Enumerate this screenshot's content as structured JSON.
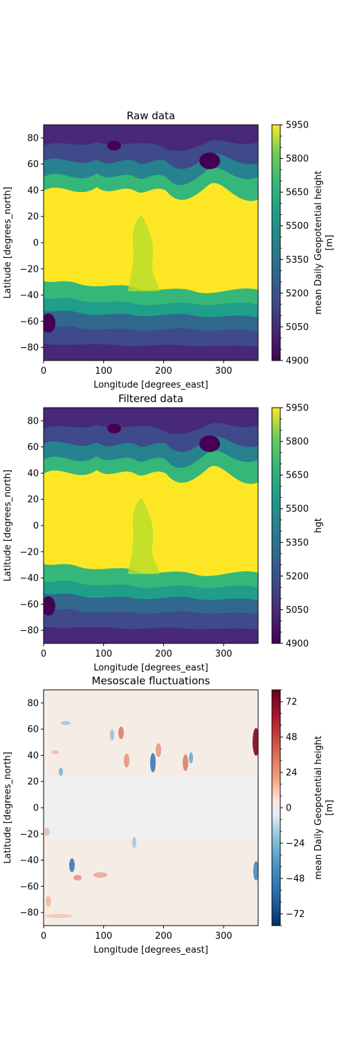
{
  "chart_data": [
    {
      "type": "heatmap",
      "title": "Raw data",
      "xlabel": "Longitude [degrees_east]",
      "ylabel": "Latitude [degrees_north]",
      "xlim": [
        0,
        357.5
      ],
      "ylim": [
        -90,
        90
      ],
      "x_ticks": [
        "0",
        "100",
        "200",
        "300"
      ],
      "y_ticks": [
        "80",
        "60",
        "40",
        "20",
        "0",
        "−20",
        "−40",
        "−60",
        "−80"
      ],
      "colormap": "viridis",
      "colorbar": {
        "label": "mean Daily Geopotential height",
        "label_unit": "[m]",
        "range": [
          4900,
          5950
        ],
        "ticks": [
          "5950",
          "5800",
          "5650",
          "5500",
          "5350",
          "5200",
          "5050",
          "4900"
        ]
      }
    },
    {
      "type": "heatmap",
      "title": "Filtered data",
      "xlabel": "Longitude [degrees_east]",
      "ylabel": "Latitude [degrees_north]",
      "xlim": [
        0,
        357.5
      ],
      "ylim": [
        -90,
        90
      ],
      "x_ticks": [
        "0",
        "100",
        "200",
        "300"
      ],
      "y_ticks": [
        "80",
        "60",
        "40",
        "20",
        "0",
        "−20",
        "−40",
        "−60",
        "−80"
      ],
      "colormap": "viridis",
      "colorbar": {
        "label": "hgt",
        "label_unit": "",
        "range": [
          4900,
          5950
        ],
        "ticks": [
          "5950",
          "5800",
          "5650",
          "5500",
          "5350",
          "5200",
          "5050",
          "4900"
        ]
      }
    },
    {
      "type": "heatmap",
      "title": "Mesoscale fluctuations",
      "xlabel": "Longitude [degrees_east]",
      "ylabel": "Latitude [degrees_north]",
      "xlim": [
        0,
        357.5
      ],
      "ylim": [
        -90,
        90
      ],
      "x_ticks": [
        "0",
        "100",
        "200",
        "300"
      ],
      "y_ticks": [
        "80",
        "60",
        "40",
        "20",
        "0",
        "−20",
        "−40",
        "−60",
        "−80"
      ],
      "colormap": "RdBu_r",
      "colorbar": {
        "label": "mean Daily Geopotential height",
        "label_unit": "[m]",
        "range": [
          -80,
          80
        ],
        "ticks": [
          "72",
          "48",
          "24",
          "0",
          "−24",
          "−48",
          "−72"
        ]
      }
    }
  ]
}
